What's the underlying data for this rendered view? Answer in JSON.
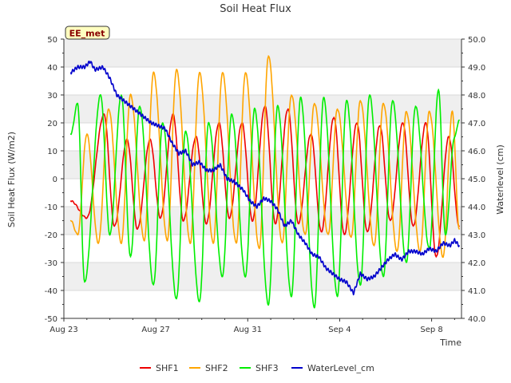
{
  "chart_data": {
    "type": "line",
    "title": "Soil Heat Flux",
    "xlabel": "Time",
    "ylabel": "Soil Heat Flux (W/m2)",
    "y2label": "Waterlevel (cm)",
    "badge": "EE_met",
    "x_ticks": [
      {
        "day": 0,
        "label": "Aug 23"
      },
      {
        "day": 4,
        "label": "Aug 27"
      },
      {
        "day": 8,
        "label": "Aug 31"
      },
      {
        "day": 12,
        "label": "Sep 4"
      },
      {
        "day": 16,
        "label": "Sep 8"
      }
    ],
    "xlim": [
      0,
      17.3
    ],
    "ylim": [
      -50,
      50
    ],
    "y_ticks": [
      -50,
      -40,
      -30,
      -20,
      -10,
      0,
      10,
      20,
      30,
      40,
      50
    ],
    "y2lim": [
      40.0,
      50.0
    ],
    "y2_ticks": [
      "40.0",
      "41.0",
      "42.0",
      "43.0",
      "44.0",
      "45.0",
      "46.0",
      "47.0",
      "48.0",
      "49.0",
      "50.0"
    ],
    "grid": true,
    "legend_position": "bottom",
    "series": [
      {
        "name": "SHF1",
        "color": "#ee0000",
        "axis": "left",
        "x": [
          0.3,
          1.0,
          1.75,
          2.2,
          2.75,
          3.2,
          3.75,
          4.2,
          4.75,
          5.2,
          5.75,
          6.2,
          6.75,
          7.2,
          7.75,
          8.2,
          8.75,
          9.2,
          9.75,
          10.2,
          10.75,
          11.2,
          11.75,
          12.2,
          12.75,
          13.2,
          13.75,
          14.2,
          14.75,
          15.2,
          15.75,
          16.2,
          16.75,
          17.2
        ],
        "values": [
          -8,
          -14,
          23,
          -17,
          14,
          -18,
          14,
          -14,
          23,
          -15,
          15,
          -16,
          20,
          -14,
          20,
          -15,
          26,
          -16,
          25,
          -16,
          16,
          -19,
          22,
          -20,
          20,
          -19,
          19,
          -15,
          20,
          -17,
          20,
          -28,
          15,
          -17
        ]
      },
      {
        "name": "SHF2",
        "color": "#ffa500",
        "axis": "left",
        "x": [
          0.3,
          0.6,
          1.0,
          1.5,
          1.95,
          2.5,
          2.9,
          3.5,
          3.9,
          4.5,
          4.9,
          5.5,
          5.9,
          6.5,
          6.9,
          7.5,
          7.9,
          8.5,
          8.9,
          9.5,
          9.9,
          10.5,
          10.9,
          11.5,
          11.9,
          12.5,
          12.9,
          13.5,
          13.9,
          14.5,
          14.9,
          15.5,
          15.9,
          16.5,
          16.9,
          17.2
        ],
        "values": [
          -15,
          -20,
          16,
          -23,
          25,
          -23,
          30,
          -22,
          38,
          -22,
          39,
          -23,
          38,
          -23,
          38,
          -23,
          38,
          -25,
          44,
          -23,
          30,
          -20,
          27,
          -20,
          25,
          -21,
          28,
          -24,
          27,
          -26,
          24,
          -26,
          24,
          -28,
          24,
          -18
        ]
      },
      {
        "name": "SHF3",
        "color": "#00ee00",
        "axis": "left",
        "x": [
          0.3,
          0.6,
          0.9,
          1.6,
          2.0,
          2.5,
          2.9,
          3.3,
          3.9,
          4.3,
          4.9,
          5.3,
          5.9,
          6.3,
          6.9,
          7.3,
          7.9,
          8.3,
          8.9,
          9.3,
          9.9,
          10.3,
          10.9,
          11.3,
          11.9,
          12.3,
          12.9,
          13.3,
          13.9,
          14.3,
          14.9,
          15.3,
          15.9,
          16.3,
          16.6,
          17.0,
          17.2
        ],
        "values": [
          16,
          27,
          -37,
          30,
          -20,
          30,
          -28,
          26,
          -38,
          20,
          -43,
          17,
          -44,
          20,
          -35,
          23,
          -35,
          25,
          -45,
          26,
          -42,
          29,
          -46,
          29,
          -42,
          28,
          -38,
          30,
          -35,
          28,
          -30,
          26,
          -25,
          32,
          -20,
          15,
          21
        ]
      },
      {
        "name": "WaterLevel_cm",
        "color": "#0000cc",
        "axis": "right",
        "x": [
          0.3,
          0.6,
          0.9,
          1.15,
          1.35,
          1.7,
          2.0,
          2.3,
          2.6,
          2.9,
          3.2,
          3.5,
          3.8,
          4.1,
          4.4,
          4.7,
          5.0,
          5.3,
          5.6,
          5.9,
          6.2,
          6.5,
          6.8,
          7.1,
          7.4,
          7.8,
          8.1,
          8.4,
          8.7,
          9.0,
          9.3,
          9.6,
          9.9,
          10.2,
          10.5,
          10.8,
          11.1,
          11.4,
          11.7,
          12.0,
          12.3,
          12.6,
          12.9,
          13.2,
          13.5,
          13.8,
          14.1,
          14.4,
          14.7,
          15.0,
          15.3,
          15.6,
          15.9,
          16.2,
          16.5,
          16.8,
          17.0,
          17.2
        ],
        "values": [
          48.8,
          49.0,
          49.0,
          49.2,
          48.9,
          49.0,
          48.6,
          48.0,
          47.8,
          47.6,
          47.4,
          47.2,
          47.0,
          46.9,
          46.8,
          46.3,
          45.9,
          46.0,
          45.5,
          45.6,
          45.3,
          45.3,
          45.5,
          45.0,
          44.9,
          44.6,
          44.2,
          44.0,
          44.3,
          44.2,
          43.9,
          43.3,
          43.5,
          43.0,
          42.7,
          42.3,
          42.2,
          41.8,
          41.6,
          41.4,
          41.3,
          40.9,
          41.6,
          41.4,
          41.5,
          41.8,
          42.1,
          42.3,
          42.1,
          42.4,
          42.4,
          42.3,
          42.5,
          42.4,
          42.7,
          42.6,
          42.8,
          42.6
        ]
      }
    ]
  }
}
